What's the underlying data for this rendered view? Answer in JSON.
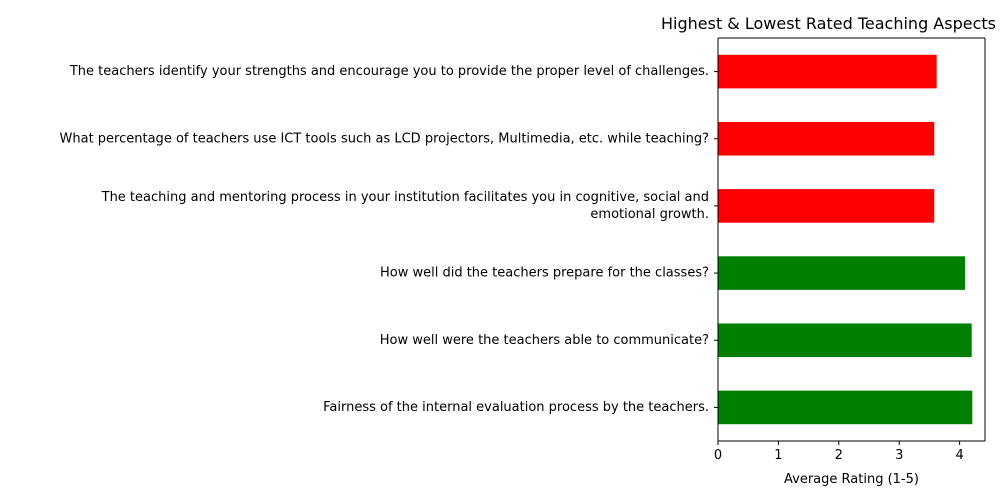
{
  "chart_data": {
    "type": "bar",
    "orientation": "horizontal",
    "title": "Highest & Lowest Rated Teaching Aspects",
    "xlabel": "Average Rating (1-5)",
    "ylabel": "",
    "xlim": [
      0,
      4.42
    ],
    "x_ticks": [
      "0",
      "1",
      "2",
      "3",
      "4"
    ],
    "grid": false,
    "categories": [
      "The teachers identify your strengths and encourage you to provide the proper level of challenges.",
      "What percentage of teachers use ICT tools such as LCD projectors, Multimedia, etc. while teaching?",
      "The teaching and mentoring process in your institution facilitates you in cognitive, social and emotional growth.",
      "How well did the teachers prepare for the classes?",
      "How well were the teachers able to communicate?",
      "Fairness of the internal evaluation process by the teachers."
    ],
    "category_lines": [
      [
        "The teachers identify your strengths and encourage you to provide the proper level of challenges."
      ],
      [
        "What percentage of teachers use ICT tools such as LCD projectors, Multimedia, etc. while teaching?"
      ],
      [
        "The teaching and mentoring process in your institution facilitates you in cognitive, social and",
        "emotional growth."
      ],
      [
        "How well did the teachers prepare for the classes?"
      ],
      [
        "How well were the teachers able to communicate?"
      ],
      [
        "Fairness of the internal evaluation process by the teachers."
      ]
    ],
    "values": [
      3.62,
      3.58,
      3.58,
      4.09,
      4.2,
      4.21
    ],
    "colors": [
      "#ff0000",
      "#ff0000",
      "#ff0000",
      "#008000",
      "#008000",
      "#008000"
    ]
  }
}
